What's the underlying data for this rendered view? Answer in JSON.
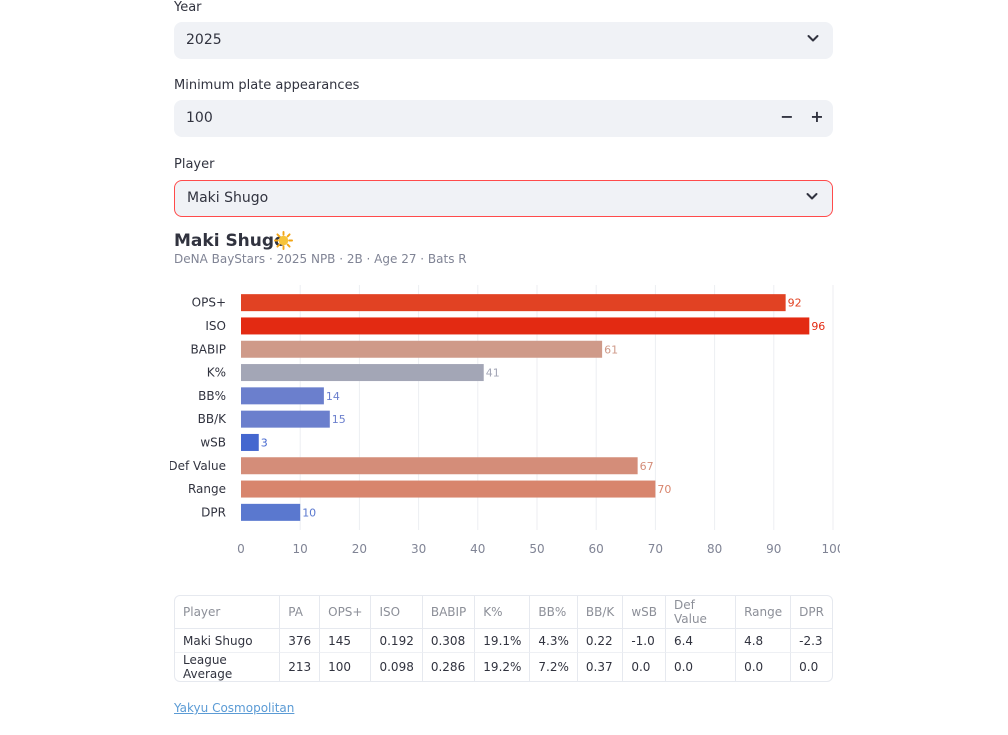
{
  "form": {
    "year_label": "Year",
    "year_value": "2025",
    "min_pa_label": "Minimum plate appearances",
    "min_pa_value": "100",
    "minus": "−",
    "plus": "+",
    "player_label": "Player",
    "player_value": "Maki Shugo"
  },
  "player": {
    "name": "Maki Shugo",
    "subtitle": "DeNA BayStars · 2025 NPB · 2B · Age 27 · Bats R"
  },
  "chart_data": {
    "type": "bar",
    "orientation": "horizontal",
    "categories": [
      "OPS+",
      "ISO",
      "BABIP",
      "K%",
      "BB%",
      "BB/K",
      "wSB",
      "Def Value",
      "Range",
      "DPR"
    ],
    "values": [
      92,
      96,
      61,
      41,
      14,
      15,
      3,
      67,
      70,
      10
    ],
    "colors": [
      "#e14223",
      "#e32a12",
      "#cf9a89",
      "#a3a6b6",
      "#6b7fcd",
      "#6b7fcd",
      "#4467cf",
      "#d48d79",
      "#d8856d",
      "#5a78cf"
    ],
    "xlim": [
      0,
      100
    ],
    "xticks": [
      "0",
      "10",
      "20",
      "30",
      "40",
      "50",
      "60",
      "70",
      "80",
      "90",
      "100"
    ],
    "grid": true
  },
  "table": {
    "headers": [
      "Player",
      "PA",
      "OPS+",
      "ISO",
      "BABIP",
      "K%",
      "BB%",
      "BB/K",
      "wSB",
      "Def Value",
      "Range",
      "DPR"
    ],
    "rows": [
      [
        "Maki Shugo",
        "376",
        "145",
        "0.192",
        "0.308",
        "19.1%",
        "4.3%",
        "0.22",
        "-1.0",
        "6.4",
        "4.8",
        "-2.3"
      ],
      [
        "League Average",
        "213",
        "100",
        "0.098",
        "0.286",
        "19.2%",
        "7.2%",
        "0.37",
        "0.0",
        "0.0",
        "0.0",
        "0.0"
      ]
    ]
  },
  "footer": {
    "link": "Yakyu Cosmopolitan"
  }
}
